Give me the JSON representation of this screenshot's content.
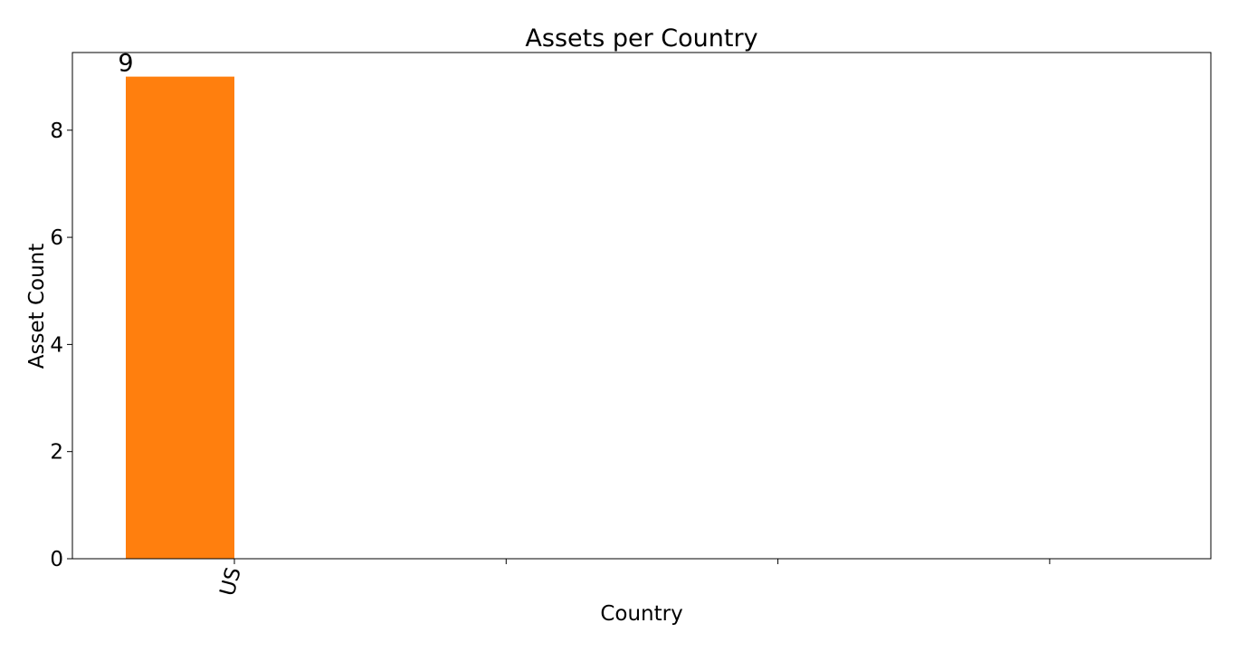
{
  "chart_data": {
    "type": "bar",
    "title": "Assets per Country",
    "xlabel": "Country",
    "ylabel": "Asset Count",
    "categories": [
      "US",
      null,
      null,
      null
    ],
    "values": [
      9,
      null,
      null,
      null
    ],
    "color": "#ff7f0e",
    "ylim": [
      0,
      9.45
    ],
    "yticks": [
      0,
      2,
      4,
      6,
      8
    ],
    "grid": false
  }
}
